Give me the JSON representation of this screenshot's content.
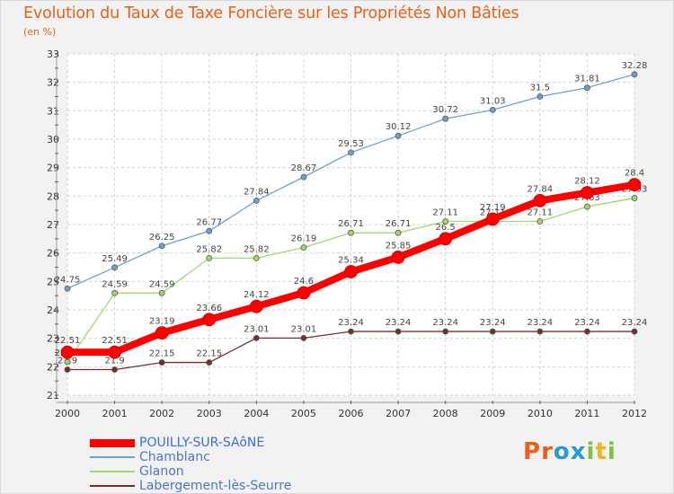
{
  "title": "Evolution du Taux de Taxe Foncière sur les Propriétés Non Bâties",
  "subtitle": "(en %)",
  "logo": {
    "text": "Proxiti",
    "letters": [
      "P",
      "r",
      "o",
      "x",
      "i",
      "t",
      "i"
    ],
    "colors": [
      "#e8611a",
      "#e8611a",
      "#2a9ad6",
      "#2a9ad6",
      "#7cc242",
      "#f3b21a",
      "#7cc242"
    ]
  },
  "chart_data": {
    "type": "line",
    "x": [
      "2000",
      "2001",
      "2002",
      "2003",
      "2004",
      "2005",
      "2006",
      "2007",
      "2008",
      "2009",
      "2010",
      "2011",
      "2012"
    ],
    "ylim": [
      21,
      33
    ],
    "yticks": [
      21,
      22,
      23,
      24,
      25,
      26,
      27,
      28,
      29,
      30,
      31,
      32,
      33
    ],
    "grid": true,
    "legend_position": "bottom-left",
    "series": [
      {
        "name": "POUILLY-SUR-SAôNE",
        "color": "#ff0000",
        "width": 8,
        "marker": 7,
        "values": [
          22.51,
          22.51,
          23.19,
          23.66,
          24.12,
          24.6,
          25.34,
          25.85,
          26.5,
          27.19,
          27.84,
          28.12,
          28.4
        ],
        "labels": [
          "22.51",
          "22.51",
          "23.19",
          "23.66",
          "24.12",
          "24.6",
          "25.34",
          "25.85",
          "26.5",
          "27.19",
          "27.84",
          "28.12",
          "28.4"
        ]
      },
      {
        "name": "Chamblanc",
        "color": "#6ea2cd",
        "width": 1.3,
        "marker": 3,
        "values": [
          24.75,
          25.49,
          26.25,
          26.77,
          27.84,
          28.67,
          29.53,
          30.12,
          30.72,
          31.03,
          31.5,
          31.81,
          32.28
        ],
        "labels": [
          "24.75",
          "25.49",
          "26.25",
          "26.77",
          "27.84",
          "28.67",
          "29.53",
          "30.12",
          "30.72",
          "31.03",
          "31.5",
          "31.81",
          "32.28"
        ]
      },
      {
        "name": "Glanon",
        "color": "#9ed96b",
        "width": 1.3,
        "marker": 3,
        "values": [
          22.17,
          24.59,
          24.59,
          25.82,
          25.82,
          26.19,
          26.71,
          26.71,
          27.11,
          27.11,
          27.11,
          27.63,
          27.93
        ],
        "labels": [
          "22.17",
          "24.59",
          "24.59",
          "25.82",
          "25.82",
          "26.19",
          "26.71",
          "26.71",
          "27.11",
          "27.11",
          "27.11",
          "27.63",
          "27.93"
        ]
      },
      {
        "name": "Labergement-lès-Seurre",
        "color": "#7a2c2c",
        "width": 1.3,
        "marker": 3,
        "values": [
          21.9,
          21.9,
          22.15,
          22.15,
          23.01,
          23.01,
          23.24,
          23.24,
          23.24,
          23.24,
          23.24,
          23.24,
          23.24
        ],
        "labels": [
          "21.9",
          "21.9",
          "22.15",
          "22.15",
          "23.01",
          "23.01",
          "23.24",
          "23.24",
          "23.24",
          "23.24",
          "23.24",
          "23.24",
          "23.24"
        ]
      }
    ]
  }
}
